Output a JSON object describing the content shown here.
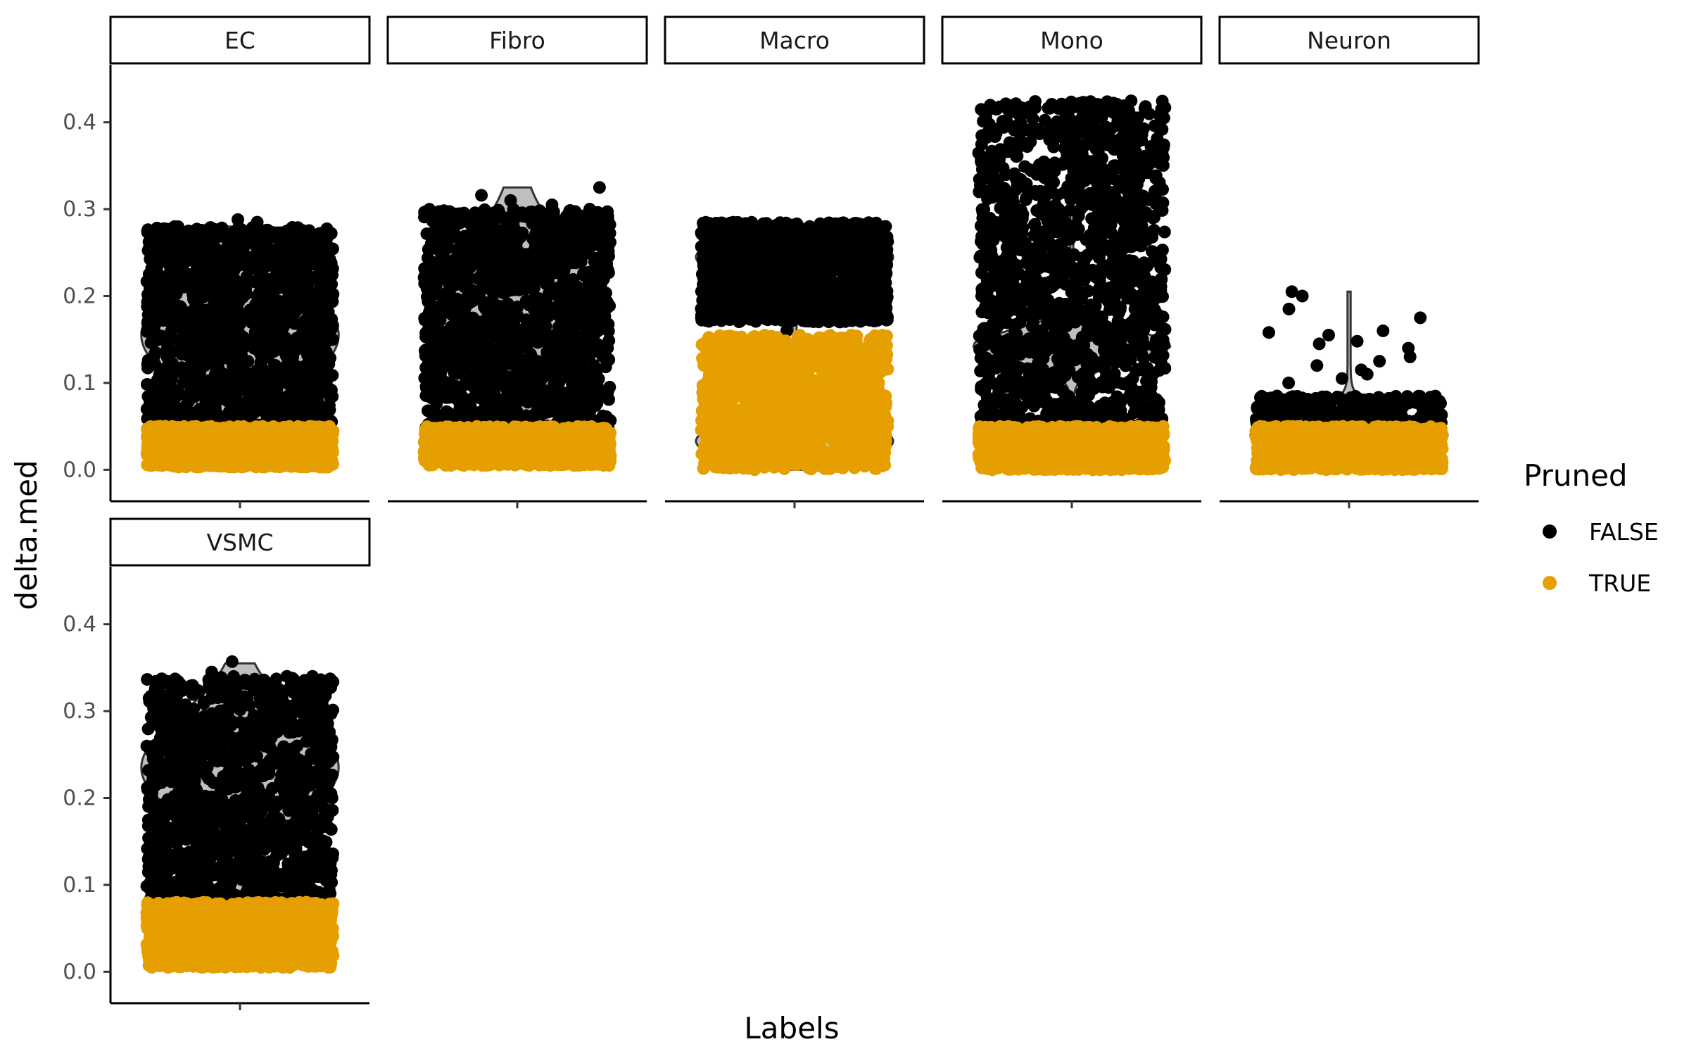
{
  "chart_data": {
    "type": "violin-jitter",
    "title": "",
    "xlabel": "Labels",
    "ylabel": "delta.med",
    "ylim": [
      -0.02,
      0.45
    ],
    "yticks": [
      0.0,
      0.1,
      0.2,
      0.3,
      0.4
    ],
    "ytick_labels": [
      "0.0",
      "0.1",
      "0.2",
      "0.3",
      "0.4"
    ],
    "legend": {
      "title": "Pruned",
      "position": "right",
      "entries": [
        {
          "label": "FALSE",
          "color": "#000000"
        },
        {
          "label": "TRUE",
          "color": "#E69F00"
        }
      ]
    },
    "violin_fill": "#bfbfbf",
    "facets": [
      {
        "label": "EC",
        "violin": {
          "min": 0.0,
          "max": 0.28,
          "peaks": [
            [
              0.155,
              0.75,
              0.06
            ]
          ]
        },
        "points": [
          {
            "series": "FALSE",
            "range": [
              0.045,
              0.28
            ],
            "density": "dense",
            "outliers": [
              0.285,
              0.288,
              0.27
            ]
          },
          {
            "series": "TRUE",
            "range": [
              0.003,
              0.05
            ],
            "density": "dense",
            "outliers": []
          }
        ]
      },
      {
        "label": "Fibro",
        "violin": {
          "min": 0.005,
          "max": 0.325,
          "peaks": [
            [
              0.19,
              0.6,
              0.07
            ]
          ]
        },
        "points": [
          {
            "series": "FALSE",
            "range": [
              0.045,
              0.3
            ],
            "density": "dense",
            "outliers": [
              0.325,
              0.316,
              0.31,
              0.305
            ]
          },
          {
            "series": "TRUE",
            "range": [
              0.005,
              0.05
            ],
            "density": "dense",
            "outliers": []
          }
        ]
      },
      {
        "label": "Macro",
        "violin": {
          "min": 0.0,
          "max": 0.28,
          "peaks": [
            [
              0.245,
              0.75,
              0.025
            ],
            [
              0.033,
              0.75,
              0.025
            ]
          ]
        },
        "points": [
          {
            "series": "FALSE",
            "range": [
              0.17,
              0.285
            ],
            "density": "dense",
            "outliers": [
              0.16,
              0.15,
              0.14
            ]
          },
          {
            "series": "TRUE",
            "range": [
              0.0,
              0.155
            ],
            "density": "dense",
            "outliers": []
          }
        ]
      },
      {
        "label": "Mono",
        "violin": {
          "min": 0.0,
          "max": 0.425,
          "peaks": [
            [
              0.143,
              0.75,
              0.018
            ]
          ]
        },
        "points": [
          {
            "series": "FALSE",
            "range": [
              0.05,
              0.425
            ],
            "density": "dense",
            "outliers": []
          },
          {
            "series": "TRUE",
            "range": [
              0.0,
              0.05
            ],
            "density": "dense",
            "outliers": []
          }
        ]
      },
      {
        "label": "Neuron",
        "violin": {
          "min": 0.0,
          "max": 0.205,
          "peaks": [
            [
              0.04,
              0.75,
              0.02
            ]
          ]
        },
        "points": [
          {
            "series": "FALSE",
            "range": [
              0.05,
              0.085
            ],
            "density": "medium",
            "outliers": [
              0.205,
              0.2,
              0.185,
              0.175,
              0.16,
              0.158,
              0.155,
              0.148,
              0.145,
              0.14,
              0.13,
              0.125,
              0.12,
              0.115,
              0.11,
              0.105,
              0.1
            ]
          },
          {
            "series": "TRUE",
            "range": [
              0.0,
              0.05
            ],
            "density": "dense",
            "outliers": []
          }
        ]
      },
      {
        "label": "VSMC",
        "violin": {
          "min": 0.005,
          "max": 0.355,
          "peaks": [
            [
              0.235,
              0.75,
              0.06
            ]
          ]
        },
        "points": [
          {
            "series": "FALSE",
            "range": [
              0.08,
              0.34
            ],
            "density": "dense",
            "outliers": [
              0.357,
              0.345,
              0.34
            ]
          },
          {
            "series": "TRUE",
            "range": [
              0.005,
              0.08
            ],
            "density": "dense",
            "outliers": []
          }
        ]
      }
    ]
  }
}
